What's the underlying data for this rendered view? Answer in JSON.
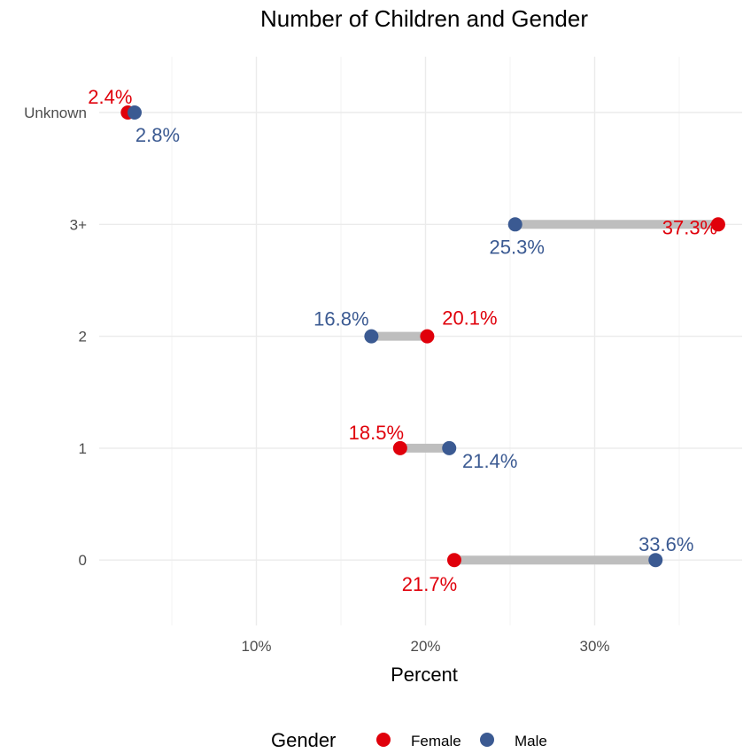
{
  "chart_data": {
    "type": "dumbbell",
    "title": "Number of Children and Gender",
    "xlabel": "Percent",
    "ylabel": "",
    "xlim": [
      0,
      37.5
    ],
    "x_ticks": [
      10,
      20,
      30
    ],
    "x_tick_labels": [
      "10%",
      "20%",
      "30%"
    ],
    "categories": [
      "Unknown",
      "3+",
      "2",
      "1",
      "0"
    ],
    "series": [
      {
        "name": "Female",
        "color": "#e0000b",
        "values": [
          2.4,
          37.3,
          20.1,
          18.5,
          21.7
        ],
        "labels": [
          "2.4%",
          "37.3%",
          "20.1%",
          "18.5%",
          "21.7%"
        ]
      },
      {
        "name": "Male",
        "color": "#3b5a92",
        "values": [
          2.8,
          25.3,
          16.8,
          21.4,
          33.6
        ],
        "labels": [
          "2.8%",
          "25.3%",
          "16.8%",
          "21.4%",
          "33.6%"
        ]
      }
    ],
    "connector_color": "#bebebe",
    "grid": true,
    "legend": {
      "title": "Gender",
      "position": "bottom"
    }
  }
}
